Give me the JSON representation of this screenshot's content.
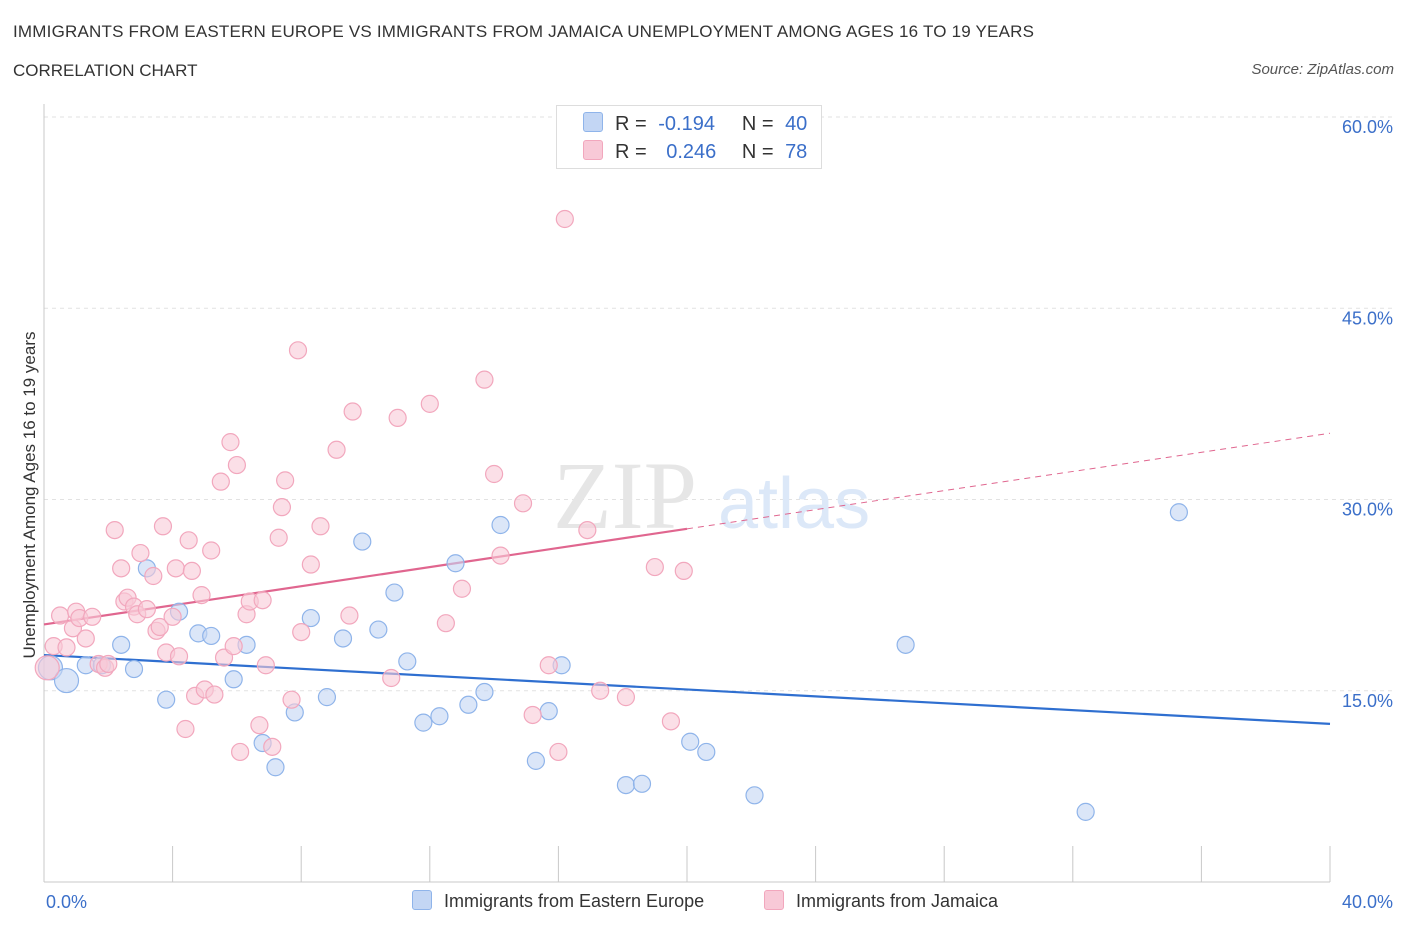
{
  "header": {
    "title": "IMMIGRANTS FROM EASTERN EUROPE VS IMMIGRANTS FROM JAMAICA UNEMPLOYMENT AMONG AGES 16 TO 19 YEARS",
    "subtitle": "CORRELATION CHART",
    "source": "Source: ZipAtlas.com"
  },
  "legend": {
    "row1": {
      "r_label": "R =",
      "r_value": "-0.194",
      "n_label": "N =",
      "n_value": "40"
    },
    "row2": {
      "r_label": "R =",
      "r_value": "0.246",
      "n_label": "N =",
      "n_value": "78"
    }
  },
  "bottom_legend": {
    "item1": "Immigrants from Eastern Europe",
    "item2": "Immigrants from Jamaica"
  },
  "watermark": {
    "zip": "ZIP",
    "atlas": "atlas"
  },
  "chart_data": {
    "type": "scatter",
    "ylabel": "Unemployment Among Ages 16 to 19 years",
    "xlabel": "",
    "xlim": [
      0,
      40
    ],
    "ylim": [
      0,
      60
    ],
    "x_tick_labels": [
      {
        "value": 0,
        "label": "0.0%"
      },
      {
        "value": 40,
        "label": "40.0%"
      }
    ],
    "y_tick_labels": [
      {
        "value": 15,
        "label": "15.0%"
      },
      {
        "value": 30,
        "label": "30.0%"
      },
      {
        "value": 45,
        "label": "45.0%"
      },
      {
        "value": 60,
        "label": "60.0%"
      }
    ],
    "grid": true,
    "series": [
      {
        "name": "Immigrants from Eastern Europe",
        "color": "#8fb4ea",
        "fill": "#c3d6f4",
        "line_color": "#2f6fd0",
        "trend": {
          "x": [
            0,
            40
          ],
          "y": [
            17.8,
            12.4
          ]
        },
        "points": [
          [
            0.2,
            16.8
          ],
          [
            0.7,
            15.8
          ],
          [
            1.3,
            17.0
          ],
          [
            1.8,
            17.0
          ],
          [
            2.4,
            18.6
          ],
          [
            2.8,
            16.7
          ],
          [
            3.2,
            24.6
          ],
          [
            3.8,
            14.3
          ],
          [
            4.2,
            21.2
          ],
          [
            4.8,
            19.5
          ],
          [
            5.2,
            19.3
          ],
          [
            5.9,
            15.9
          ],
          [
            6.3,
            18.6
          ],
          [
            6.8,
            10.9
          ],
          [
            7.2,
            9.0
          ],
          [
            7.8,
            13.3
          ],
          [
            8.3,
            20.7
          ],
          [
            8.8,
            14.5
          ],
          [
            9.3,
            19.1
          ],
          [
            9.9,
            26.7
          ],
          [
            10.4,
            19.8
          ],
          [
            10.9,
            22.7
          ],
          [
            11.3,
            17.3
          ],
          [
            11.8,
            12.5
          ],
          [
            12.3,
            13.0
          ],
          [
            12.8,
            25.0
          ],
          [
            13.2,
            13.9
          ],
          [
            13.7,
            14.9
          ],
          [
            14.2,
            28.0
          ],
          [
            15.3,
            9.5
          ],
          [
            15.7,
            13.4
          ],
          [
            16.1,
            17.0
          ],
          [
            18.1,
            7.6
          ],
          [
            18.6,
            7.7
          ],
          [
            20.1,
            11.0
          ],
          [
            20.6,
            10.2
          ],
          [
            22.1,
            6.8
          ],
          [
            26.8,
            18.6
          ],
          [
            32.4,
            5.5
          ],
          [
            35.3,
            29.0
          ]
        ]
      },
      {
        "name": "Immigrants from Jamaica",
        "color": "#f2a7bd",
        "fill": "#f8c9d7",
        "line_color": "#e0668f",
        "trend": {
          "x": [
            0,
            40
          ],
          "y": [
            20.2,
            35.2
          ]
        },
        "trend_solid_end": 20,
        "points": [
          [
            0.1,
            16.8
          ],
          [
            0.3,
            18.5
          ],
          [
            0.5,
            20.9
          ],
          [
            0.7,
            18.4
          ],
          [
            0.9,
            19.9
          ],
          [
            1.0,
            21.2
          ],
          [
            1.1,
            20.7
          ],
          [
            1.3,
            19.1
          ],
          [
            1.5,
            20.8
          ],
          [
            1.7,
            17.1
          ],
          [
            1.9,
            16.8
          ],
          [
            2.0,
            17.1
          ],
          [
            2.2,
            27.6
          ],
          [
            2.4,
            24.6
          ],
          [
            2.5,
            22.0
          ],
          [
            2.6,
            22.3
          ],
          [
            2.8,
            21.6
          ],
          [
            2.9,
            21.0
          ],
          [
            3.0,
            25.8
          ],
          [
            3.2,
            21.4
          ],
          [
            3.4,
            24.0
          ],
          [
            3.5,
            19.7
          ],
          [
            3.6,
            20.0
          ],
          [
            3.7,
            27.9
          ],
          [
            3.8,
            18.0
          ],
          [
            4.0,
            20.8
          ],
          [
            4.1,
            24.6
          ],
          [
            4.2,
            17.7
          ],
          [
            4.4,
            12.0
          ],
          [
            4.5,
            26.8
          ],
          [
            4.6,
            24.4
          ],
          [
            4.7,
            14.6
          ],
          [
            4.9,
            22.5
          ],
          [
            5.0,
            15.1
          ],
          [
            5.2,
            26.0
          ],
          [
            5.3,
            14.7
          ],
          [
            5.5,
            31.4
          ],
          [
            5.6,
            17.6
          ],
          [
            5.8,
            34.5
          ],
          [
            5.9,
            18.5
          ],
          [
            6.0,
            32.7
          ],
          [
            6.1,
            10.2
          ],
          [
            6.3,
            21.0
          ],
          [
            6.4,
            22.0
          ],
          [
            6.7,
            12.3
          ],
          [
            6.8,
            22.1
          ],
          [
            6.9,
            17.0
          ],
          [
            7.1,
            10.6
          ],
          [
            7.3,
            27.0
          ],
          [
            7.4,
            29.4
          ],
          [
            7.5,
            31.5
          ],
          [
            7.7,
            14.3
          ],
          [
            7.9,
            41.7
          ],
          [
            8.0,
            19.6
          ],
          [
            8.3,
            24.9
          ],
          [
            8.6,
            27.9
          ],
          [
            9.1,
            33.9
          ],
          [
            9.6,
            36.9
          ],
          [
            10.8,
            16.0
          ],
          [
            11.0,
            36.4
          ],
          [
            12.0,
            37.5
          ],
          [
            12.5,
            20.3
          ],
          [
            13.7,
            39.4
          ],
          [
            14.0,
            32.0
          ],
          [
            14.2,
            25.6
          ],
          [
            14.9,
            29.7
          ],
          [
            15.2,
            13.1
          ],
          [
            15.7,
            17.0
          ],
          [
            16.0,
            10.2
          ],
          [
            16.2,
            52.0
          ],
          [
            16.9,
            27.6
          ],
          [
            17.3,
            15.0
          ],
          [
            18.1,
            14.5
          ],
          [
            19.0,
            24.7
          ],
          [
            19.5,
            12.6
          ],
          [
            19.9,
            24.4
          ],
          [
            13.0,
            23.0
          ],
          [
            9.5,
            20.9
          ]
        ]
      }
    ]
  }
}
